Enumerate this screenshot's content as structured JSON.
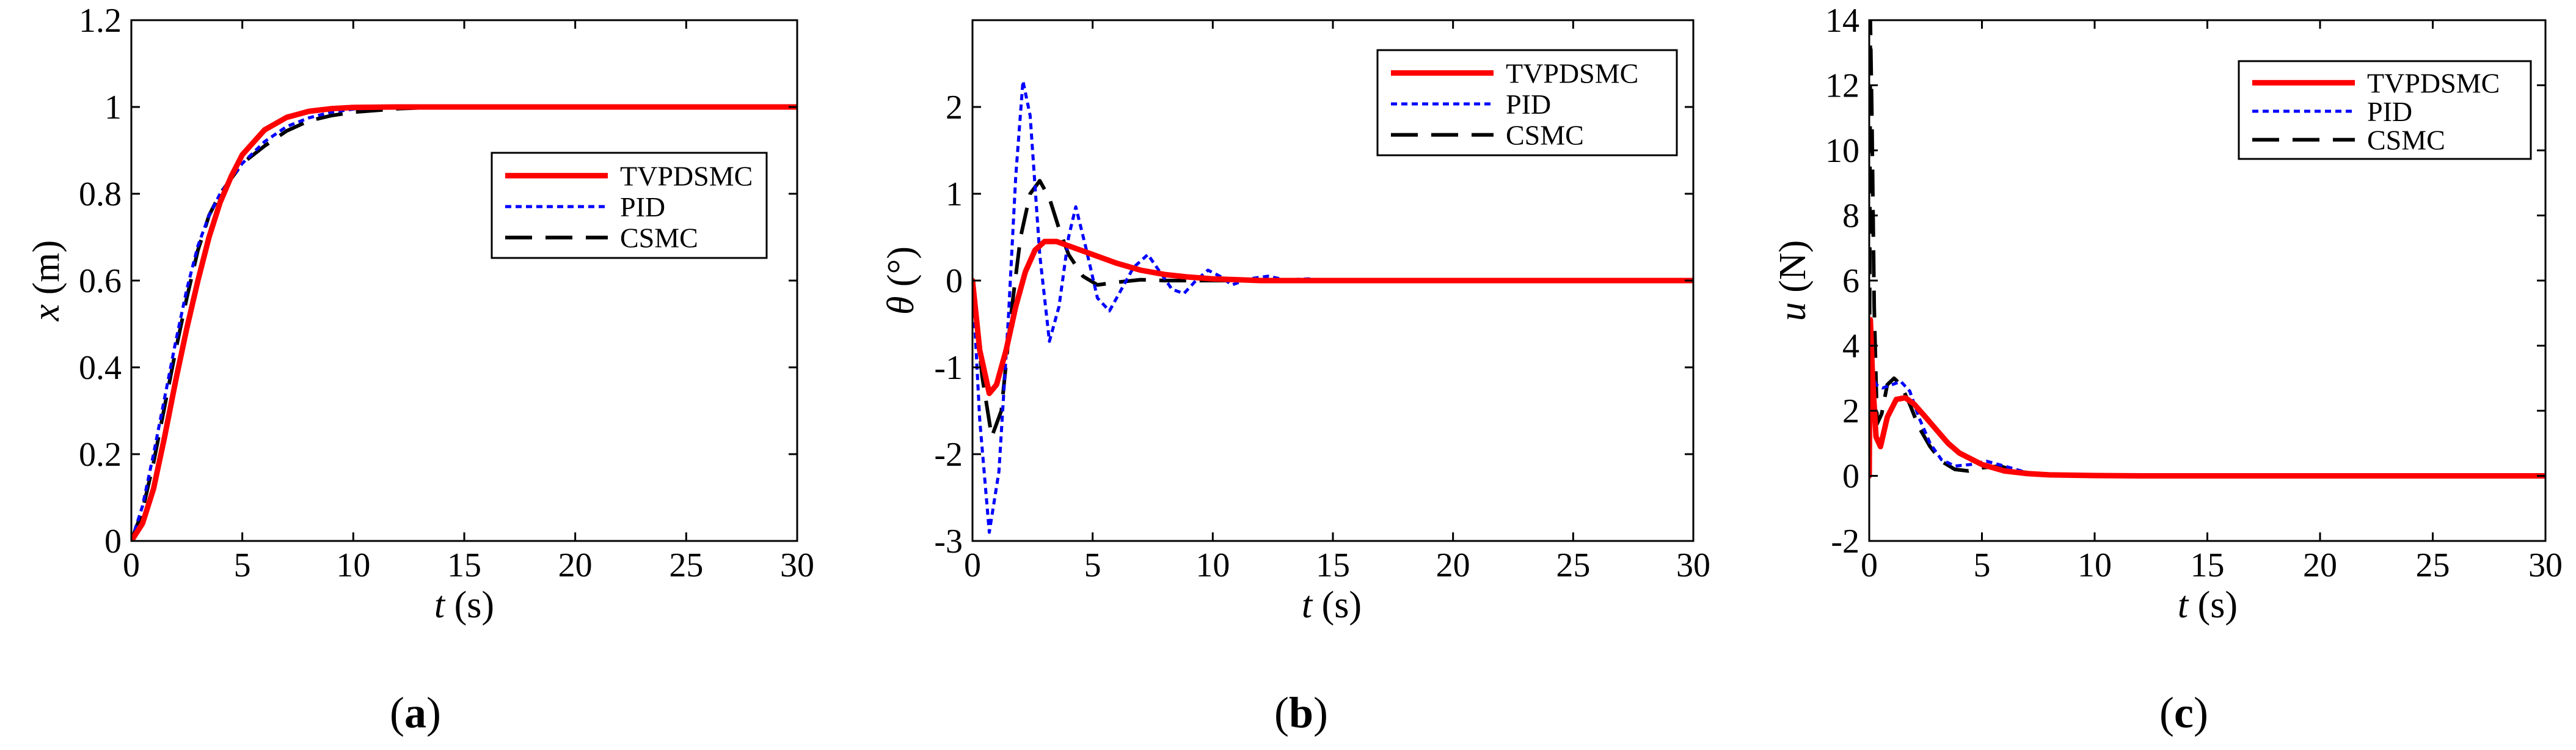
{
  "figure": {
    "panels": [
      {
        "id": "a",
        "caption_letter": "a",
        "ylabel_symbol": "x",
        "ylabel_unit": " (m)",
        "xlabel_symbol": "t",
        "xlabel_unit": " (s)"
      },
      {
        "id": "b",
        "caption_letter": "b",
        "ylabel_symbol": "θ",
        "ylabel_unit": " (°)",
        "xlabel_symbol": "t",
        "xlabel_unit": " (s)"
      },
      {
        "id": "c",
        "caption_letter": "c",
        "ylabel_symbol": "u",
        "ylabel_unit": " (N)",
        "xlabel_symbol": "t",
        "xlabel_unit": " (s)"
      }
    ]
  },
  "chart_data": [
    {
      "type": "line",
      "title": "",
      "xlabel": "t (s)",
      "ylabel": "x (m)",
      "xlim": [
        0,
        30
      ],
      "ylim": [
        0,
        1.2
      ],
      "xticks": [
        0,
        5,
        10,
        15,
        20,
        25,
        30
      ],
      "yticks": [
        0,
        0.2,
        0.4,
        0.6,
        0.8,
        1,
        1.2
      ],
      "xtick_labels": [
        "0",
        "5",
        "10",
        "15",
        "20",
        "25",
        "30"
      ],
      "ytick_labels": [
        "0",
        "0.2",
        "0.4",
        "0.6",
        "0.8",
        "1",
        "1.2"
      ],
      "legend": [
        "TVPDSMC",
        "PID",
        "CSMC"
      ],
      "legend_position": "right-middle",
      "series": [
        {
          "name": "TVPDSMC",
          "color": "#ff0000",
          "style": "solid",
          "x": [
            0,
            0.5,
            1,
            1.5,
            2,
            2.5,
            3,
            3.5,
            4,
            4.5,
            5,
            6,
            7,
            8,
            9,
            10,
            12,
            15,
            20,
            30
          ],
          "y": [
            0,
            0.04,
            0.12,
            0.24,
            0.37,
            0.49,
            0.6,
            0.7,
            0.78,
            0.84,
            0.89,
            0.947,
            0.976,
            0.99,
            0.996,
            0.999,
            1.0,
            1.0,
            1.0,
            1.0
          ]
        },
        {
          "name": "PID",
          "color": "#0000ff",
          "style": "dotted",
          "x": [
            0,
            0.5,
            1,
            1.5,
            2,
            2.5,
            3,
            3.5,
            4,
            5,
            6,
            7,
            8,
            9,
            10,
            12,
            15,
            20,
            30
          ],
          "y": [
            0,
            0.08,
            0.2,
            0.33,
            0.46,
            0.58,
            0.68,
            0.75,
            0.8,
            0.87,
            0.92,
            0.955,
            0.975,
            0.988,
            0.995,
            1.0,
            1.0,
            1.0,
            1.0
          ]
        },
        {
          "name": "CSMC",
          "color": "#000000",
          "style": "dashed",
          "x": [
            0,
            0.5,
            1,
            1.5,
            2,
            2.5,
            3,
            3.5,
            4,
            5,
            6,
            7,
            8,
            9,
            10,
            12,
            14,
            20,
            30
          ],
          "y": [
            0,
            0.07,
            0.18,
            0.31,
            0.44,
            0.56,
            0.67,
            0.75,
            0.8,
            0.87,
            0.91,
            0.945,
            0.968,
            0.98,
            0.988,
            0.996,
            1.0,
            1.0,
            1.0
          ]
        }
      ]
    },
    {
      "type": "line",
      "title": "",
      "xlabel": "t (s)",
      "ylabel": "θ (°)",
      "xlim": [
        0,
        30
      ],
      "ylim": [
        -3,
        3
      ],
      "xticks": [
        0,
        5,
        10,
        15,
        20,
        25,
        30
      ],
      "yticks": [
        -3,
        -2,
        -1,
        0,
        1,
        2
      ],
      "xtick_labels": [
        "0",
        "5",
        "10",
        "15",
        "20",
        "25",
        "30"
      ],
      "ytick_labels": [
        "-3",
        "-2",
        "-1",
        "0",
        "1",
        "2"
      ],
      "legend": [
        "TVPDSMC",
        "PID",
        "CSMC"
      ],
      "legend_position": "top-right",
      "series": [
        {
          "name": "TVPDSMC",
          "color": "#ff0000",
          "style": "solid",
          "x": [
            0,
            0.3,
            0.7,
            1.0,
            1.4,
            1.8,
            2.2,
            2.6,
            3.0,
            3.5,
            4,
            5,
            6,
            7,
            8,
            9,
            10,
            12,
            15,
            20,
            30
          ],
          "y": [
            0,
            -0.8,
            -1.3,
            -1.2,
            -0.8,
            -0.3,
            0.1,
            0.35,
            0.45,
            0.45,
            0.4,
            0.3,
            0.2,
            0.12,
            0.07,
            0.04,
            0.02,
            0.0,
            0.0,
            0.0,
            0.0
          ]
        },
        {
          "name": "PID",
          "color": "#0000ff",
          "style": "dotted",
          "x": [
            0,
            0.3,
            0.7,
            1.1,
            1.5,
            1.8,
            2.1,
            2.4,
            2.8,
            3.2,
            3.6,
            4.0,
            4.3,
            4.7,
            5.2,
            5.7,
            6.2,
            6.7,
            7.3,
            7.8,
            8.3,
            8.8,
            9.3,
            9.8,
            10.3,
            10.8,
            11.5,
            12.3,
            13,
            14,
            15,
            20,
            30
          ],
          "y": [
            0,
            -1.6,
            -2.9,
            -2.2,
            -0.4,
            1.2,
            2.3,
            1.9,
            0.3,
            -0.7,
            -0.3,
            0.5,
            0.85,
            0.4,
            -0.2,
            -0.35,
            -0.1,
            0.15,
            0.3,
            0.1,
            -0.1,
            -0.15,
            0.0,
            0.12,
            0.05,
            -0.05,
            0.02,
            0.05,
            0.01,
            0.02,
            0.0,
            0.0,
            0.0
          ]
        },
        {
          "name": "CSMC",
          "color": "#000000",
          "style": "dashed",
          "x": [
            0,
            0.4,
            0.8,
            1.2,
            1.6,
            2.0,
            2.4,
            2.8,
            3.2,
            3.6,
            4.0,
            4.6,
            5.2,
            6,
            7,
            8,
            9,
            10,
            12,
            15,
            20,
            30
          ],
          "y": [
            0,
            -1.1,
            -1.8,
            -1.5,
            -0.4,
            0.5,
            1.0,
            1.15,
            0.95,
            0.6,
            0.3,
            0.05,
            -0.05,
            -0.02,
            0.01,
            0.0,
            0.0,
            0.0,
            0.0,
            0.0,
            0.0,
            0.0
          ]
        }
      ]
    },
    {
      "type": "line",
      "title": "",
      "xlabel": "t (s)",
      "ylabel": "u (N)",
      "xlim": [
        0,
        30
      ],
      "ylim": [
        -2,
        14
      ],
      "xticks": [
        0,
        5,
        10,
        15,
        20,
        25,
        30
      ],
      "yticks": [
        -2,
        0,
        2,
        4,
        6,
        8,
        10,
        12,
        14
      ],
      "xtick_labels": [
        "0",
        "5",
        "10",
        "15",
        "20",
        "25",
        "30"
      ],
      "ytick_labels": [
        "-2",
        "0",
        "2",
        "4",
        "6",
        "8",
        "10",
        "12",
        "14"
      ],
      "legend": [
        "TVPDSMC",
        "PID",
        "CSMC"
      ],
      "legend_position": "top-right",
      "series": [
        {
          "name": "TVPDSMC",
          "color": "#ff0000",
          "style": "solid",
          "x": [
            0,
            0.05,
            0.15,
            0.3,
            0.5,
            0.8,
            1.2,
            1.6,
            2.0,
            2.5,
            3.0,
            3.5,
            4.0,
            5.0,
            6.0,
            7.0,
            8.0,
            10,
            12,
            15,
            20,
            30
          ],
          "y": [
            0,
            4.8,
            3.0,
            1.2,
            0.9,
            1.8,
            2.35,
            2.4,
            2.2,
            1.8,
            1.4,
            1.0,
            0.7,
            0.35,
            0.15,
            0.07,
            0.03,
            0.01,
            0.0,
            0.0,
            0.0,
            0.0
          ]
        },
        {
          "name": "PID",
          "color": "#0000ff",
          "style": "dotted",
          "x": [
            0,
            0.1,
            0.3,
            0.6,
            1.0,
            1.4,
            1.8,
            2.2,
            2.7,
            3.2,
            3.8,
            4.5,
            5.2,
            6.0,
            7.0,
            8.0,
            9.0,
            10,
            12,
            15,
            20,
            30
          ],
          "y": [
            0,
            3.2,
            2.8,
            2.7,
            2.8,
            2.9,
            2.6,
            1.8,
            1.0,
            0.5,
            0.3,
            0.35,
            0.45,
            0.3,
            0.1,
            0.02,
            0.05,
            0.03,
            0.0,
            0.0,
            0.0,
            0.0
          ]
        },
        {
          "name": "CSMC",
          "color": "#000000",
          "style": "dashed",
          "x": [
            0,
            0.05,
            0.12,
            0.22,
            0.35,
            0.55,
            0.8,
            1.1,
            1.4,
            1.8,
            2.2,
            2.7,
            3.2,
            3.8,
            4.4,
            5.0,
            5.8,
            6.5,
            7.5,
            8.5,
            10,
            12,
            15,
            20,
            30
          ],
          "y": [
            0,
            14.0,
            11.0,
            5.2,
            1.6,
            1.9,
            2.8,
            3.0,
            2.8,
            2.2,
            1.5,
            0.9,
            0.45,
            0.2,
            0.15,
            0.25,
            0.3,
            0.15,
            0.05,
            0.02,
            0.0,
            0.0,
            0.0,
            0.0,
            0.0
          ]
        }
      ]
    }
  ]
}
